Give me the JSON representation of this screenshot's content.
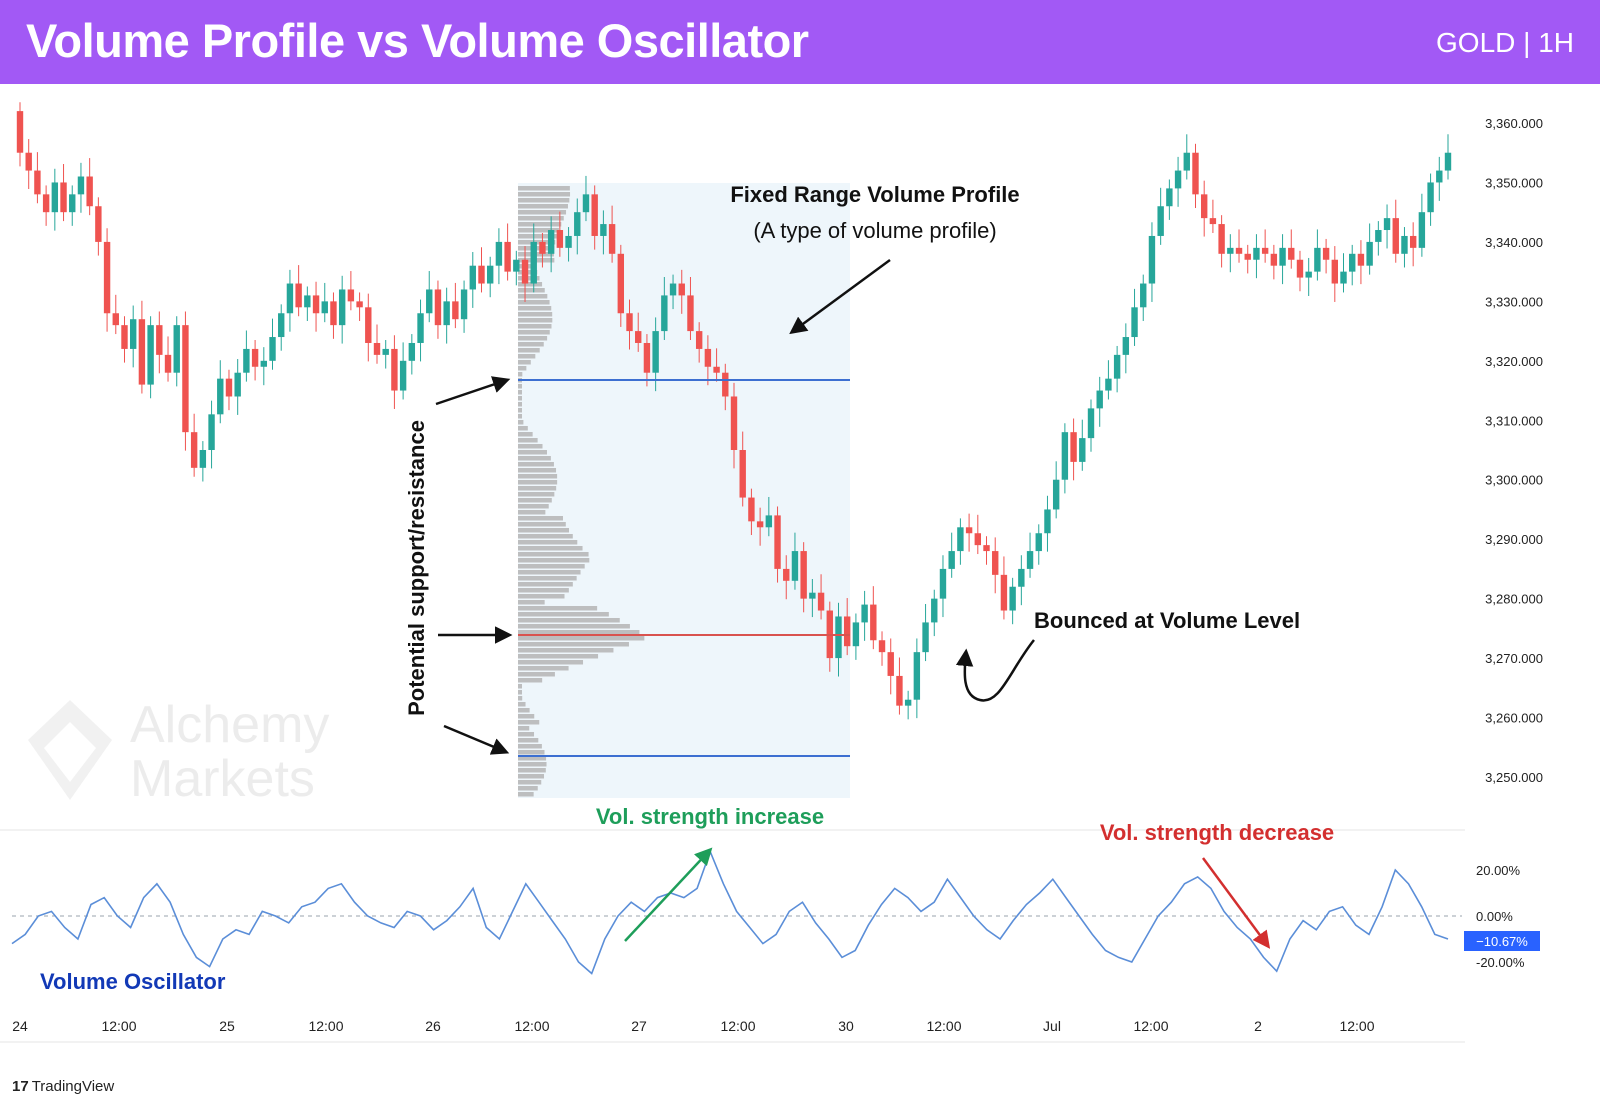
{
  "header": {
    "title": "Volume Profile vs Volume Oscillator",
    "symbol": "GOLD | 1H"
  },
  "watermark": {
    "line1": "Alchemy",
    "line2": "Markets"
  },
  "tradingview": {
    "label": "TradingView"
  },
  "annotations": {
    "profile_title": "Fixed Range Volume Profile",
    "profile_subtitle": "(A type of volume profile)",
    "support_resistance": "Potential support/resistance",
    "bounce": "Bounced at Volume Level",
    "vol_increase": "Vol. strength increase",
    "vol_decrease": "Vol. strength decrease",
    "oscillator_label": "Volume Oscillator"
  },
  "colors": {
    "header": "#a259f5",
    "bull": "#26a69a",
    "bear": "#ef5350",
    "oscillator": "#5b8ed8",
    "level_blue": "#3c6fd1",
    "level_red": "#d9534f",
    "increase": "#1e9e5a",
    "decrease": "#d32f2f"
  },
  "chart_data": [
    {
      "type": "candlestick",
      "title": "",
      "x_ticks": [
        "24",
        "12:00",
        "25",
        "12:00",
        "26",
        "12:00",
        "27",
        "12:00",
        "30",
        "12:00",
        "Jul",
        "12:00",
        "2",
        "12:00"
      ],
      "y_ticks": [
        "3,250.000",
        "3,260.000",
        "3,270.000",
        "3,280.000",
        "3,290.000",
        "3,300.000",
        "3,310.000",
        "3,320.000",
        "3,330.000",
        "3,340.000",
        "3,350.000",
        "3,360.000"
      ],
      "ylim": [
        3245,
        3366
      ],
      "close_series": [
        3355,
        3352,
        3348,
        3345,
        3350,
        3345,
        3348,
        3351,
        3346,
        3340,
        3328,
        3326,
        3322,
        3327,
        3316,
        3326,
        3321,
        3318,
        3326,
        3308,
        3302,
        3305,
        3311,
        3317,
        3314,
        3318,
        3322,
        3319,
        3320,
        3324,
        3328,
        3333,
        3329,
        3331,
        3328,
        3330,
        3326,
        3332,
        3330,
        3329,
        3323,
        3321,
        3322,
        3315,
        3320,
        3323,
        3328,
        3332,
        3326,
        3330,
        3327,
        3332,
        3336,
        3333,
        3336,
        3340,
        3335,
        3337,
        3333,
        3340,
        3338,
        3342,
        3339,
        3341,
        3345,
        3348,
        3341,
        3343,
        3338,
        3328,
        3325,
        3323,
        3318,
        3325,
        3331,
        3333,
        3331,
        3325,
        3322,
        3319,
        3318,
        3314,
        3305,
        3297,
        3293,
        3292,
        3294,
        3285,
        3283,
        3288,
        3280,
        3281,
        3278,
        3270,
        3277,
        3272,
        3276,
        3279,
        3273,
        3271,
        3267,
        3262,
        3263,
        3271,
        3276,
        3280,
        3285,
        3288,
        3292,
        3291,
        3289,
        3288,
        3284,
        3278,
        3282,
        3285,
        3288,
        3291,
        3295,
        3300,
        3308,
        3303,
        3307,
        3312,
        3315,
        3317,
        3321,
        3324,
        3329,
        3333,
        3341,
        3346,
        3349,
        3352,
        3355,
        3348,
        3344,
        3343,
        3338,
        3339,
        3338,
        3337,
        3339,
        3338,
        3336,
        3339,
        3337,
        3334,
        3335,
        3339,
        3337,
        3333,
        3335,
        3338,
        3336,
        3340,
        3342,
        3344,
        3338,
        3341,
        3339,
        3345,
        3350,
        3352,
        3355
      ],
      "levels": [
        {
          "name": "upper",
          "value": 3317
        },
        {
          "name": "poc",
          "value": 3274
        },
        {
          "name": "lower",
          "value": 3253
        }
      ]
    },
    {
      "type": "line",
      "title": "Volume Oscillator",
      "y_ticks": [
        "20.00%",
        "0.00%",
        "-20.00%"
      ],
      "ylim": [
        -30,
        32
      ],
      "current_value": "−10.67%",
      "values": [
        -12,
        -8,
        0,
        2,
        -5,
        -10,
        5,
        8,
        0,
        -5,
        8,
        14,
        6,
        -8,
        -18,
        -22,
        -10,
        -6,
        -8,
        2,
        0,
        -3,
        4,
        6,
        12,
        14,
        6,
        0,
        -3,
        -5,
        2,
        0,
        -6,
        -2,
        4,
        12,
        -5,
        -10,
        2,
        14,
        6,
        -2,
        -10,
        -20,
        -25,
        -10,
        0,
        6,
        2,
        8,
        10,
        8,
        12,
        28,
        14,
        2,
        -5,
        -12,
        -8,
        2,
        6,
        -3,
        -10,
        -18,
        -15,
        -4,
        5,
        12,
        8,
        2,
        6,
        16,
        8,
        0,
        -6,
        -10,
        -2,
        5,
        10,
        16,
        8,
        0,
        -8,
        -15,
        -18,
        -20,
        -10,
        0,
        6,
        14,
        17,
        12,
        2,
        -5,
        -10,
        -18,
        -24,
        -10,
        -2,
        -6,
        2,
        4,
        -4,
        -8,
        4,
        20,
        14,
        4,
        -8,
        -10
      ]
    }
  ]
}
